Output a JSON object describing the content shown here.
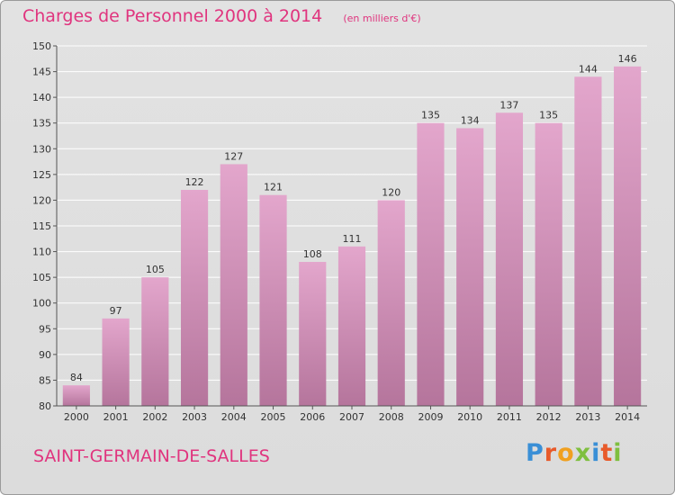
{
  "header": {
    "title": "Charges de Personnel 2000 à 2014",
    "subtitle": "(en milliers d'€)"
  },
  "footer": {
    "commune": "SAINT-GERMAIN-DE-SALLES",
    "brand": "Proxiti",
    "brand_colors": [
      "#3a8fd6",
      "#e85a2a",
      "#f0a020",
      "#7fbf3f",
      "#3a8fd6",
      "#e85a2a",
      "#7fbf3f"
    ]
  },
  "colors": {
    "bar_top": "#e3a6cc",
    "bar_bottom": "#b5759c",
    "accent": "#e0347e",
    "axis": "#555555",
    "grid": "#ffffff"
  },
  "chart_data": {
    "type": "bar",
    "categories": [
      "2000",
      "2001",
      "2002",
      "2003",
      "2004",
      "2005",
      "2006",
      "2007",
      "2008",
      "2009",
      "2010",
      "2011",
      "2012",
      "2013",
      "2014"
    ],
    "values": [
      84,
      97,
      105,
      122,
      127,
      121,
      108,
      111,
      120,
      135,
      134,
      137,
      135,
      144,
      146
    ],
    "ylim": [
      80,
      150
    ],
    "yticks": [
      80,
      85,
      90,
      95,
      100,
      105,
      110,
      115,
      120,
      125,
      130,
      135,
      140,
      145,
      150
    ],
    "grid": true,
    "data_labels": true
  }
}
